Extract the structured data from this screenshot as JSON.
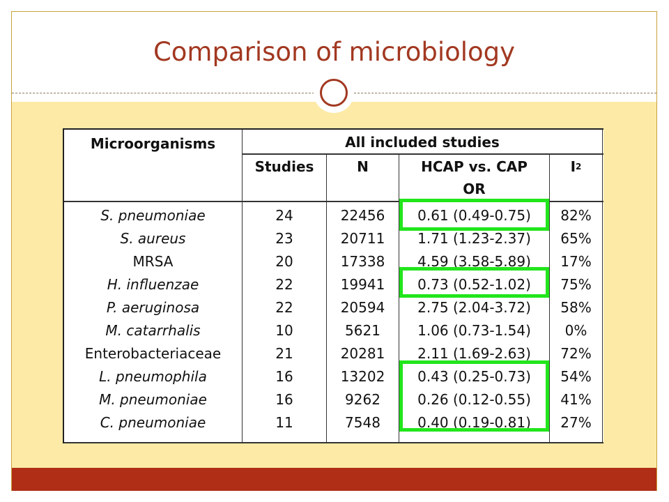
{
  "slide": {
    "title": "Comparison of microbiology"
  },
  "table": {
    "header": {
      "microorganisms": "Microorganisms",
      "group": "All included studies",
      "studies": "Studies",
      "n": "N",
      "or_line1": "HCAP vs. CAP",
      "or_line2": "OR",
      "i2_base": "I",
      "i2_sup": "2"
    },
    "rows": [
      {
        "organism": "S. pneumoniae",
        "italic": true,
        "studies": "24",
        "n": "22456",
        "or": "0.61 (0.49-0.75)",
        "i2": "82%"
      },
      {
        "organism": "S. aureus",
        "italic": true,
        "studies": "23",
        "n": "20711",
        "or": "1.71 (1.23-2.37)",
        "i2": "65%"
      },
      {
        "organism": "MRSA",
        "italic": false,
        "studies": "20",
        "n": "17338",
        "or": "4.59 (3.58-5.89)",
        "i2": "17%"
      },
      {
        "organism": "H. influenzae",
        "italic": true,
        "studies": "22",
        "n": "19941",
        "or": "0.73 (0.52-1.02)",
        "i2": "75%"
      },
      {
        "organism": "P. aeruginosa",
        "italic": true,
        "studies": "22",
        "n": "20594",
        "or": "2.75 (2.04-3.72)",
        "i2": "58%"
      },
      {
        "organism": "M. catarrhalis",
        "italic": true,
        "studies": "10",
        "n": "5621",
        "or": "1.06 (0.73-1.54)",
        "i2": "0%"
      },
      {
        "organism": "Enterobacteriaceae",
        "italic": false,
        "studies": "21",
        "n": "20281",
        "or": "2.11 (1.69-2.63)",
        "i2": "72%"
      },
      {
        "organism": "L. pneumophila",
        "italic": true,
        "studies": "16",
        "n": "13202",
        "or": "0.43 (0.25-0.73)",
        "i2": "54%"
      },
      {
        "organism": "M. pneumoniae",
        "italic": true,
        "studies": "16",
        "n": "9262",
        "or": "0.26 (0.12-0.55)",
        "i2": "41%"
      },
      {
        "organism": "C. pneumoniae",
        "italic": true,
        "studies": "11",
        "n": "7548",
        "or": "0.40 (0.19-0.81)",
        "i2": "27%"
      }
    ]
  },
  "colors": {
    "title": "#a23821",
    "content_background": "#fdeaa6",
    "footer_bar": "#b02e16",
    "highlight": "#22e51c"
  }
}
